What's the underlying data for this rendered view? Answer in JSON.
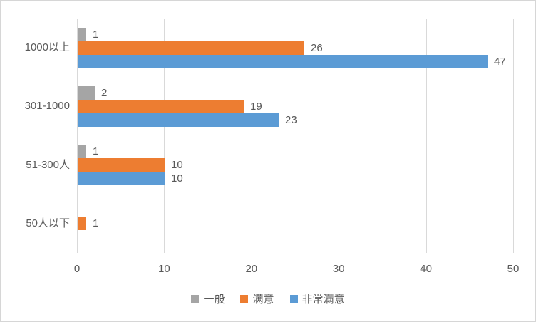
{
  "chart_data": {
    "type": "bar",
    "orientation": "horizontal",
    "title": "",
    "xlabel": "",
    "ylabel": "",
    "categories": [
      "1000以上",
      "301-1000",
      "51-300人",
      "50人以下"
    ],
    "series": [
      {
        "name": "一般",
        "color": "#a5a5a5",
        "values": [
          1,
          2,
          1,
          null
        ]
      },
      {
        "name": "满意",
        "color": "#ed7d31",
        "values": [
          26,
          19,
          10,
          1
        ]
      },
      {
        "name": "非常满意",
        "color": "#5b9bd5",
        "values": [
          47,
          23,
          10,
          null
        ]
      }
    ],
    "xlim": [
      0,
      50
    ],
    "xticks": [
      0,
      10,
      20,
      30,
      40,
      50
    ],
    "grid": true,
    "data_labels": true,
    "legend_position": "bottom",
    "text_color": "#595959",
    "gridline_color": "#d9d9d9"
  }
}
